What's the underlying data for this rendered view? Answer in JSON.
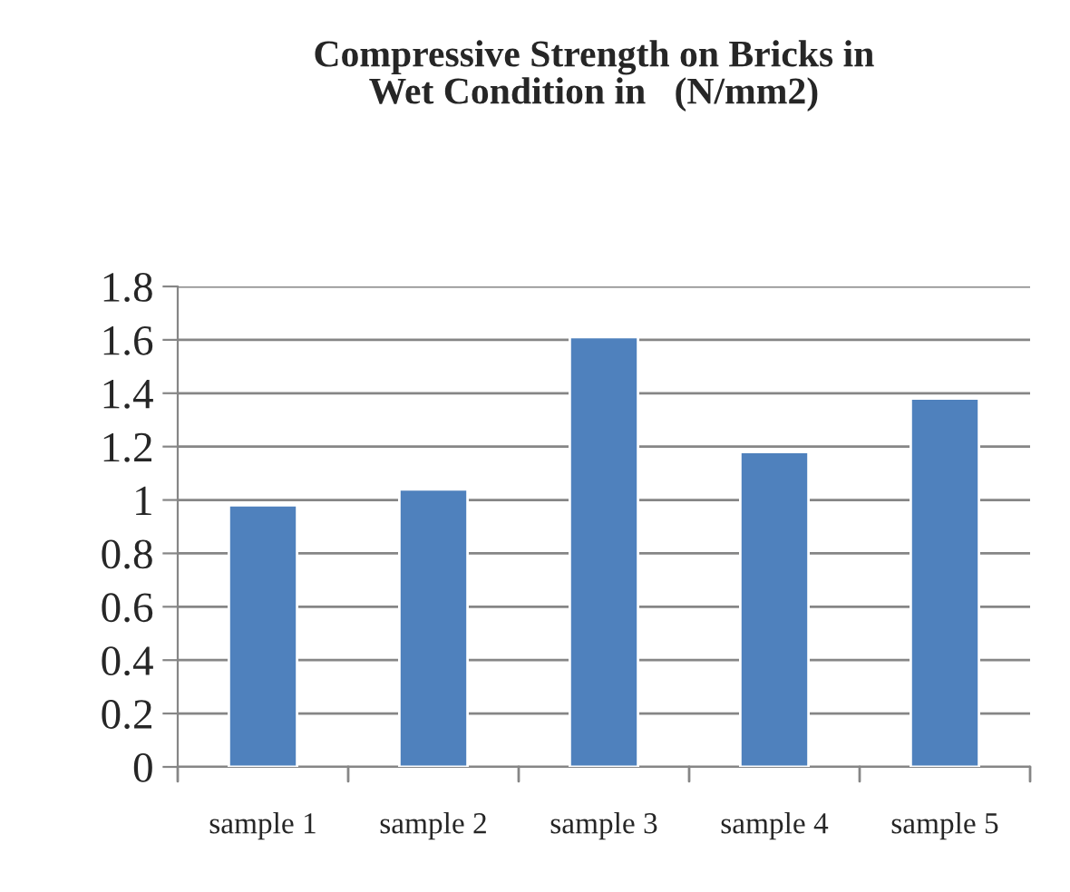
{
  "chart_data": {
    "type": "bar",
    "title": "Compressive Strength on Bricks in\nWet Condition in   (N/mm2)",
    "categories": [
      "sample 1",
      "sample 2",
      "sample 3",
      "sample 4",
      "sample 5"
    ],
    "values": [
      0.98,
      1.04,
      1.61,
      1.18,
      1.38
    ],
    "color": "#4f81bd",
    "ylim": [
      0,
      1.8
    ],
    "yticks": [
      0,
      0.2,
      0.4,
      0.6,
      0.8,
      1,
      1.2,
      1.4,
      1.6,
      1.8
    ],
    "grid": "y",
    "legend": false
  }
}
